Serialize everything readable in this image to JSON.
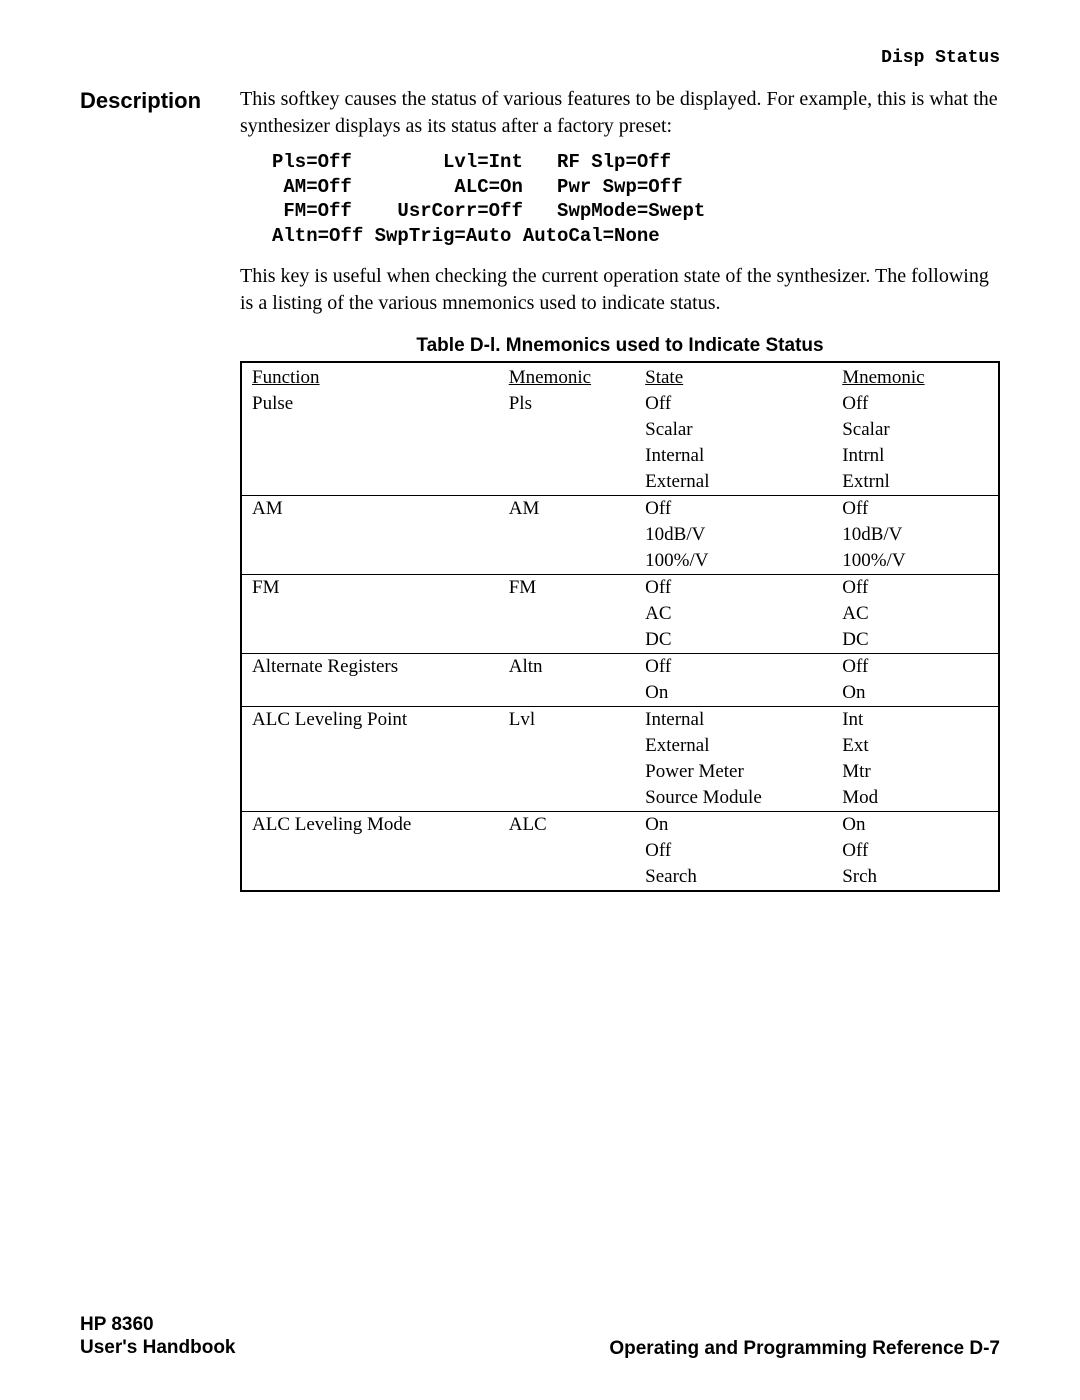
{
  "header": {
    "right": "Disp Status"
  },
  "description": {
    "label": "Description",
    "para1_a": "This ",
    "para1_b_softkey": "softkey",
    "para1_c": " causes the status of various features to be displayed. For example, this is what the synthesizer displays as its status after a factory preset:",
    "mono": "Pls=Off        Lvl=Int   RF Slp=Off\n AM=Off         ALC=On   Pwr Swp=Off\n FM=Off    UsrCorr=Off   SwpMode=Swept\nAltn=Off SwpTrig=Auto AutoCal=None",
    "para2": "This key is useful when checking the current operation state of the synthesizer. The following is a listing of the various mnemonics used to indicate status."
  },
  "table": {
    "caption": "Table D-l. Mnemonics used to Indicate Status",
    "headers": [
      "Function",
      "Mnemonic",
      "State",
      "Mnemonic"
    ],
    "groups": [
      {
        "func": "Pulse",
        "mn": "Pls",
        "rows": [
          [
            "Off",
            "Off"
          ],
          [
            "Scalar",
            "Scalar"
          ],
          [
            "Internal",
            "Intrnl"
          ],
          [
            "External",
            "Extrnl"
          ]
        ]
      },
      {
        "func": "AM",
        "mn": "AM",
        "rows": [
          [
            "Off",
            "Off"
          ],
          [
            "10dB/V",
            "10dB/V"
          ],
          [
            "100%/V",
            "100%/V"
          ]
        ]
      },
      {
        "func": "FM",
        "mn": "FM",
        "rows": [
          [
            "Off",
            "Off"
          ],
          [
            "AC",
            "AC"
          ],
          [
            "DC",
            "DC"
          ]
        ]
      },
      {
        "func": "Alternate  Registers",
        "mn": "Altn",
        "rows": [
          [
            "Off",
            "Off"
          ],
          [
            "On",
            "On"
          ]
        ]
      },
      {
        "func": "ALC Leveling Point",
        "mn": "Lvl",
        "rows": [
          [
            "Internal",
            "Int"
          ],
          [
            "External",
            "Ext"
          ],
          [
            "Power  Meter",
            "Mtr"
          ],
          [
            "Source  Module",
            "Mod"
          ]
        ]
      },
      {
        "func": "ALC Leveling Mode",
        "mn": "ALC",
        "rows": [
          [
            "On",
            "On"
          ],
          [
            "Off",
            "Off"
          ],
          [
            "Search",
            "Srch"
          ]
        ]
      }
    ]
  },
  "footer": {
    "left1": "HP 8360",
    "left2": "User's Handbook",
    "right_a": "Operating and Programming Reference ",
    "right_b": "D-7"
  }
}
